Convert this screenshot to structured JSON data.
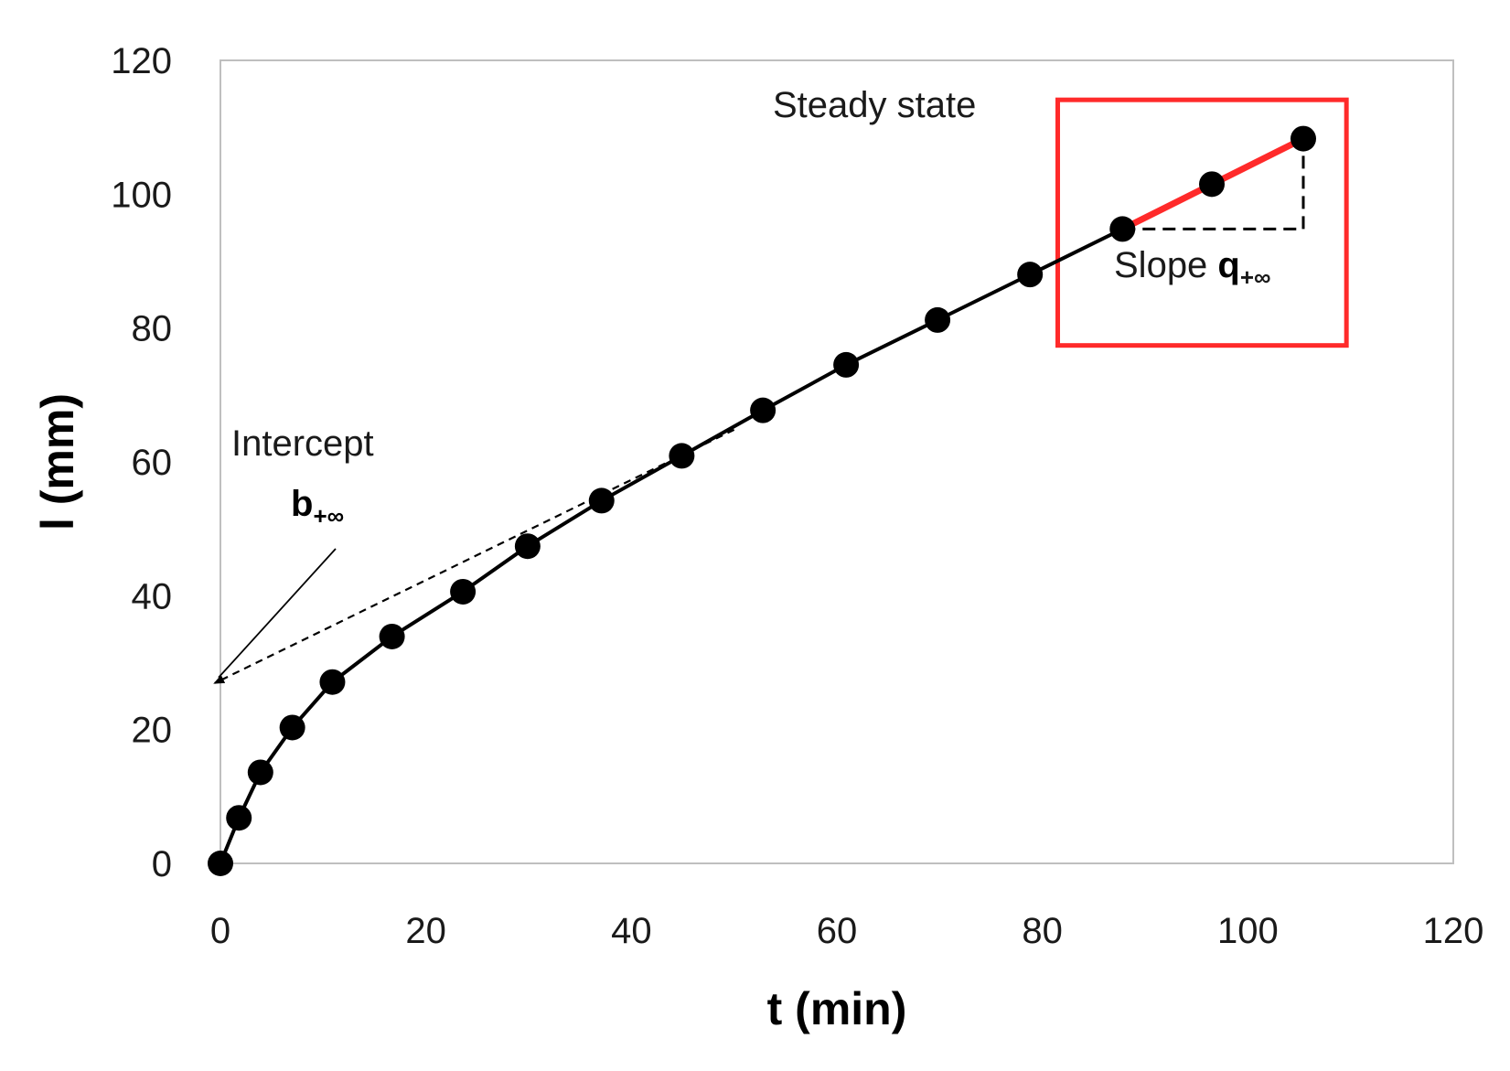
{
  "chart_data": {
    "type": "line",
    "xlabel": "t (min)",
    "ylabel": "l (mm)",
    "xlim": [
      0,
      120
    ],
    "ylim": [
      0,
      120
    ],
    "xticks": [
      "0",
      "20",
      "40",
      "60",
      "80",
      "100",
      "120"
    ],
    "yticks": [
      "0",
      "20",
      "40",
      "60",
      "80",
      "100",
      "120"
    ],
    "grid": false,
    "series": [
      {
        "x": [
          0,
          1.8,
          3.9,
          7.0,
          10.9,
          16.7,
          23.6,
          29.9,
          37.1,
          44.9,
          52.8,
          60.9,
          69.8,
          78.8,
          87.8,
          96.5,
          105.4
        ],
        "y": [
          0,
          6.8,
          13.6,
          20.3,
          27.1,
          33.9,
          40.6,
          47.4,
          54.2,
          60.9,
          67.7,
          74.5,
          81.2,
          88.0,
          94.8,
          101.5,
          108.3
        ],
        "color": "#000000"
      }
    ],
    "steady_state_fit": {
      "x": [
        87.8,
        105.4
      ],
      "y": [
        94.8,
        108.3
      ],
      "color": "#ff2a2a"
    },
    "extrapolation": {
      "x": [
        0,
        50
      ],
      "y": [
        27.5,
        64.8
      ]
    },
    "slope_triangle": {
      "x": [
        87.8,
        105.4
      ],
      "y": [
        94.8,
        108.3
      ]
    },
    "highlight_box": {
      "x": [
        81.5,
        109.6
      ],
      "y": [
        77.4,
        114.1
      ],
      "color": "#ff2a2a"
    },
    "annotations": {
      "steady_state": "Steady state",
      "slope_text": "Slope ",
      "slope_symbol": "q",
      "slope_sub": "+∞",
      "intercept_text": "Intercept",
      "intercept_symbol": "b",
      "intercept_sub": "+∞"
    }
  }
}
